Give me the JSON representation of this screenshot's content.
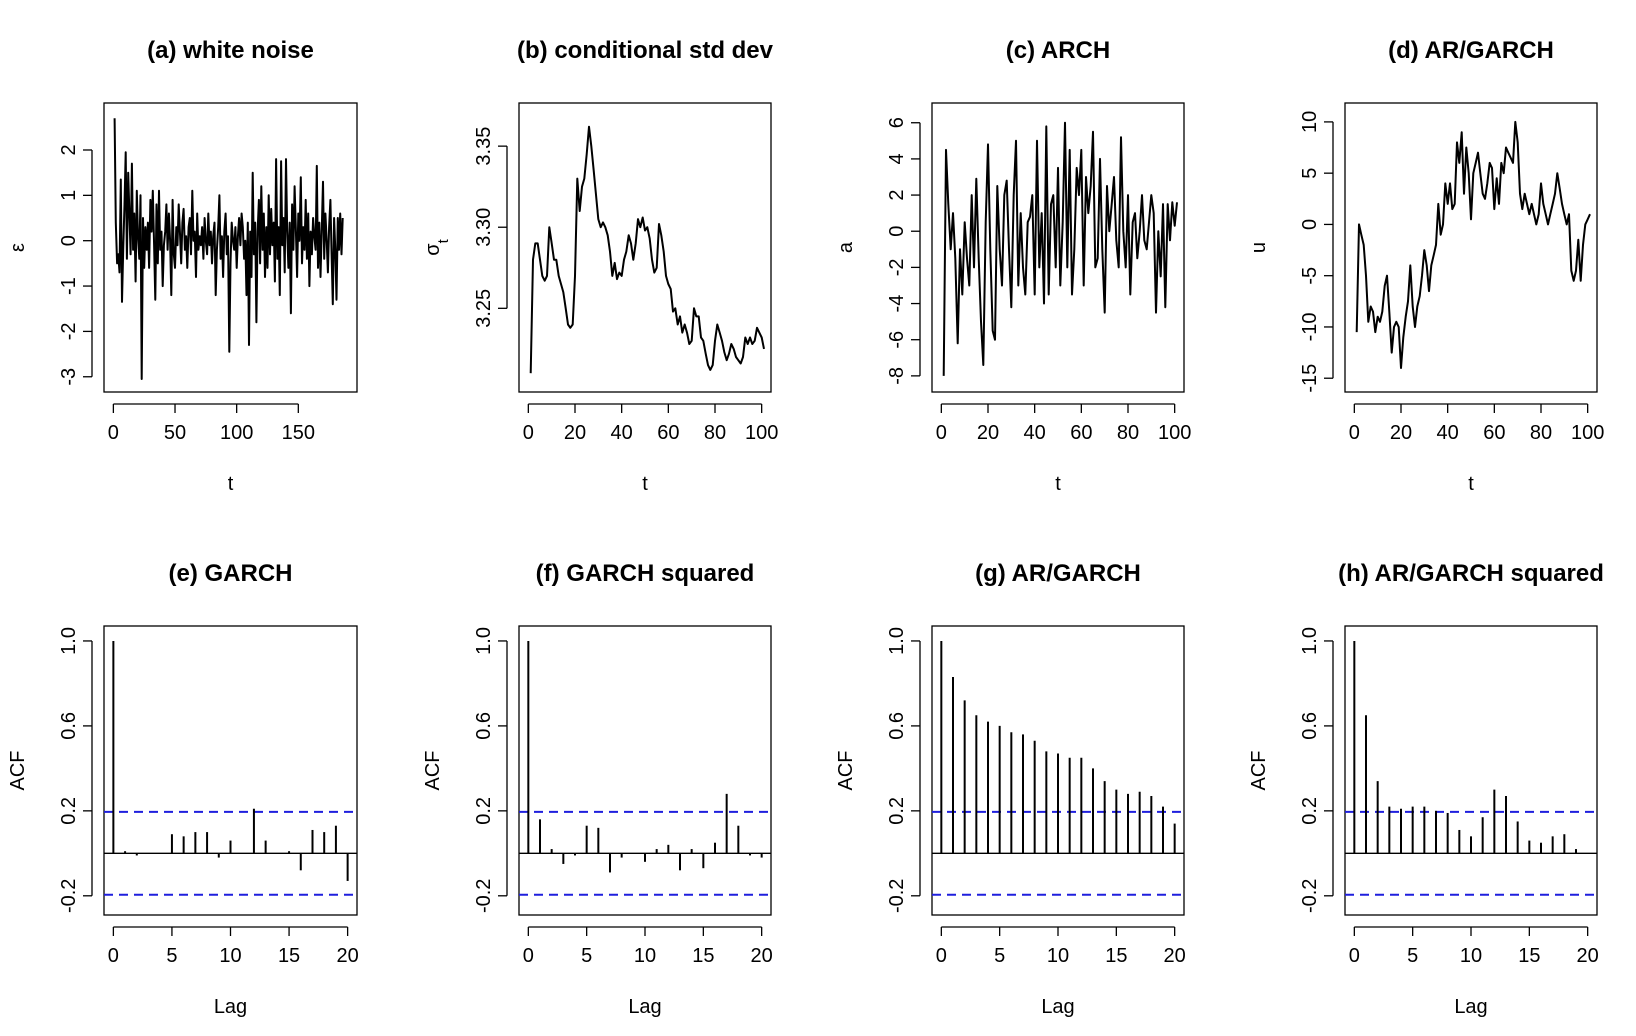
{
  "chart_data": [
    {
      "id": "a",
      "type": "line",
      "title": "(a) white noise",
      "xlabel": "t",
      "ylabel": "ε",
      "xlim": [
        0,
        190
      ],
      "ylim": [
        -3.1,
        2.8
      ],
      "xticks": [
        0,
        50,
        100,
        150
      ],
      "yticks": [
        -3,
        -2,
        -1,
        0,
        1,
        2
      ],
      "x_start": 1,
      "y": [
        2.7,
        0.4,
        -0.5,
        -0.3,
        -0.7,
        1.35,
        -1.35,
        -0.2,
        0.8,
        1.95,
        -0.4,
        1.5,
        0.6,
        -0.3,
        1.7,
        -0.2,
        0.6,
        -0.9,
        1.1,
        0.1,
        -0.4,
        1.0,
        -3.05,
        0.5,
        -0.6,
        0.3,
        -0.2,
        0.4,
        -0.6,
        0.9,
        0.2,
        1.1,
        -0.1,
        -1.3,
        0.8,
        -0.5,
        1.1,
        -0.2,
        0.2,
        -1.0,
        -0.1,
        0.2,
        0.8,
        -0.2,
        0.6,
        0.0,
        -1.2,
        0.9,
        -0.3,
        -0.6,
        0.3,
        -0.1,
        0.8,
        0.2,
        -0.5,
        0.4,
        0.7,
        -0.2,
        0.1,
        -0.6,
        0.3,
        0.5,
        -0.3,
        1.1,
        0.0,
        0.2,
        -0.8,
        0.6,
        -0.2,
        0.1,
        -0.1,
        0.3,
        -0.4,
        0.5,
        0.0,
        -0.3,
        0.6,
        -0.1,
        0.2,
        -0.5,
        0.1,
        0.4,
        -1.2,
        -0.2,
        0.3,
        1.0,
        -0.4,
        0.1,
        -0.8,
        0.2,
        0.6,
        -0.3,
        0.1,
        -2.45,
        -0.5,
        0.4,
        0.0,
        -0.2,
        0.3,
        -0.6,
        0.1,
        0.5,
        -0.1,
        0.6,
        0.3,
        -0.4,
        0.0,
        -1.2,
        0.4,
        -2.3,
        0.2,
        -0.8,
        1.5,
        -0.3,
        0.4,
        -1.8,
        0.2,
        0.9,
        -0.5,
        1.2,
        -0.2,
        0.6,
        -0.8,
        0.3,
        -0.6,
        1.0,
        -0.3,
        0.7,
        -0.1,
        0.4,
        -0.9,
        1.8,
        -0.4,
        0.3,
        -1.2,
        1.75,
        -0.1,
        0.5,
        -0.7,
        1.8,
        0.2,
        -0.6,
        0.4,
        -1.6,
        0.8,
        -0.2,
        1.2,
        0.3,
        -0.8,
        0.6,
        0.0,
        1.4,
        -0.5,
        0.3,
        -0.2,
        0.9,
        -0.4,
        0.6,
        -1.0,
        0.2,
        -0.3,
        0.5,
        0.1,
        -0.2,
        1.65,
        -0.6,
        0.4,
        -0.8,
        0.2,
        1.3,
        -0.4,
        0.6,
        0.0,
        -0.7,
        0.3,
        0.9,
        -0.3,
        -1.4,
        0.5,
        -0.2,
        -1.3,
        0.5,
        -0.2,
        0.6,
        -0.3,
        0.5
      ],
      "ylabel_style": "plain"
    },
    {
      "id": "b",
      "type": "line",
      "title": "(b) conditional std dev",
      "xlabel": "t",
      "ylabel": "σ",
      "ylabel_sub": "t",
      "xlim": [
        0,
        100
      ],
      "ylim": [
        3.205,
        3.37
      ],
      "xticks": [
        0,
        20,
        40,
        60,
        80,
        100
      ],
      "yticks": [
        3.25,
        3.3,
        3.35
      ],
      "x_start": 1,
      "y": [
        3.21,
        3.28,
        3.29,
        3.29,
        3.28,
        3.27,
        3.267,
        3.27,
        3.3,
        3.29,
        3.28,
        3.28,
        3.27,
        3.265,
        3.26,
        3.25,
        3.24,
        3.238,
        3.24,
        3.27,
        3.33,
        3.31,
        3.325,
        3.33,
        3.345,
        3.362,
        3.35,
        3.335,
        3.32,
        3.305,
        3.3,
        3.303,
        3.3,
        3.295,
        3.285,
        3.27,
        3.278,
        3.268,
        3.272,
        3.27,
        3.28,
        3.285,
        3.295,
        3.29,
        3.28,
        3.29,
        3.305,
        3.3,
        3.306,
        3.298,
        3.3,
        3.293,
        3.28,
        3.272,
        3.275,
        3.302,
        3.295,
        3.285,
        3.27,
        3.265,
        3.262,
        3.248,
        3.25,
        3.24,
        3.245,
        3.235,
        3.24,
        3.235,
        3.228,
        3.23,
        3.25,
        3.245,
        3.245,
        3.232,
        3.23,
        3.222,
        3.215,
        3.212,
        3.215,
        3.23,
        3.24,
        3.235,
        3.23,
        3.223,
        3.218,
        3.222,
        3.228,
        3.225,
        3.22,
        3.218,
        3.216,
        3.22,
        3.232,
        3.228,
        3.232,
        3.228,
        3.23,
        3.238,
        3.235,
        3.232,
        3.225
      ]
    },
    {
      "id": "c",
      "type": "line",
      "title": "(c) ARCH",
      "xlabel": "t",
      "ylabel": "a",
      "xlim": [
        0,
        100
      ],
      "ylim": [
        -8.3,
        6.5
      ],
      "xticks": [
        0,
        20,
        40,
        60,
        80,
        100
      ],
      "yticks": [
        -8,
        -6,
        -4,
        -2,
        0,
        2,
        4,
        6
      ],
      "x_start": 1,
      "y": [
        -8.0,
        4.5,
        1.5,
        -1.0,
        1.0,
        -1.5,
        -6.2,
        -1.0,
        -3.5,
        0.5,
        -1.5,
        -3.0,
        2.0,
        -2.0,
        2.9,
        -1.5,
        -5.0,
        -7.4,
        0.5,
        4.8,
        -1.0,
        -5.5,
        -6.0,
        2.5,
        -1.0,
        -3.0,
        2.0,
        2.8,
        -1.0,
        -4.2,
        2.0,
        5.0,
        -3.0,
        1.0,
        -2.0,
        -3.5,
        0.5,
        0.8,
        2.0,
        -3.5,
        5.0,
        -2.0,
        1.0,
        -4.0,
        5.8,
        -3.5,
        1.5,
        2.0,
        -2.0,
        3.5,
        -3.0,
        0.5,
        6.0,
        -2.0,
        4.5,
        -3.5,
        -1.0,
        3.5,
        2.0,
        4.5,
        -3.0,
        3.0,
        1.0,
        2.5,
        5.5,
        -2.0,
        -1.5,
        4.0,
        -1.0,
        -4.5,
        2.5,
        0.0,
        1.5,
        3.0,
        -0.5,
        -2.0,
        5.2,
        0.0,
        -2.0,
        2.0,
        -3.5,
        0.5,
        1.0,
        -1.5,
        0.0,
        2.0,
        -0.5,
        -1.0,
        0.5,
        2.0,
        1.0,
        -4.5,
        0.0,
        -2.5,
        1.5,
        -4.2,
        1.5,
        -0.5,
        1.6,
        0.3,
        1.6
      ]
    },
    {
      "id": "d",
      "type": "line",
      "title": "(d) AR/GARCH",
      "xlabel": "t",
      "ylabel": "u",
      "xlim": [
        0,
        100
      ],
      "ylim": [
        -15.3,
        10.8
      ],
      "xticks": [
        0,
        20,
        40,
        60,
        80,
        100
      ],
      "yticks": [
        -15,
        -10,
        -5,
        0,
        5,
        10
      ],
      "x_start": 1,
      "y": [
        -10.5,
        0.0,
        -1.0,
        -2.0,
        -5.0,
        -9.5,
        -8.0,
        -8.5,
        -10.5,
        -9.0,
        -9.5,
        -8.5,
        -6.0,
        -5.0,
        -8.5,
        -12.5,
        -10.0,
        -9.5,
        -10.0,
        -14.0,
        -11.0,
        -9.0,
        -7.5,
        -4.0,
        -8.0,
        -10.0,
        -8.0,
        -7.0,
        -5.0,
        -2.5,
        -4.0,
        -6.5,
        -4.0,
        -3.0,
        -2.0,
        2.0,
        -1.0,
        0.0,
        4.0,
        2.0,
        4.0,
        1.5,
        2.0,
        8.0,
        6.0,
        9.0,
        3.0,
        7.5,
        5.0,
        0.5,
        5.0,
        6.0,
        7.0,
        5.0,
        3.0,
        2.5,
        4.0,
        6.0,
        5.5,
        1.5,
        4.5,
        2.0,
        6.0,
        5.0,
        7.5,
        7.0,
        6.5,
        6.0,
        10.0,
        8.0,
        3.0,
        1.5,
        3.0,
        2.0,
        1.0,
        2.0,
        1.0,
        0.0,
        1.0,
        4.0,
        2.0,
        1.0,
        0.0,
        1.0,
        2.0,
        3.0,
        5.0,
        3.5,
        2.0,
        1.0,
        0.0,
        1.0,
        -4.5,
        -5.5,
        -4.5,
        -1.5,
        -5.5,
        -2.0,
        0.0,
        0.5,
        1.0
      ]
    },
    {
      "id": "e",
      "type": "bar",
      "title": "(e) GARCH",
      "xlabel": "Lag",
      "ylabel": "ACF",
      "xlim": [
        0,
        20
      ],
      "ylim": [
        -0.24,
        1.02
      ],
      "xticks": [
        0,
        5,
        10,
        15,
        20
      ],
      "yticks": [
        -0.2,
        0.2,
        0.6,
        1.0
      ],
      "ci": 0.195,
      "lags": [
        0,
        1,
        2,
        3,
        4,
        5,
        6,
        7,
        8,
        9,
        10,
        11,
        12,
        13,
        14,
        15,
        16,
        17,
        18,
        19,
        20
      ],
      "values": [
        1.0,
        0.01,
        -0.01,
        0.0,
        0.0,
        0.09,
        0.08,
        0.1,
        0.1,
        -0.02,
        0.06,
        0.0,
        0.21,
        0.06,
        0.0,
        0.01,
        -0.08,
        0.11,
        0.1,
        0.13,
        -0.13
      ]
    },
    {
      "id": "f",
      "type": "bar",
      "title": "(f) GARCH squared",
      "xlabel": "Lag",
      "ylabel": "ACF",
      "xlim": [
        0,
        20
      ],
      "ylim": [
        -0.24,
        1.02
      ],
      "xticks": [
        0,
        5,
        10,
        15,
        20
      ],
      "yticks": [
        -0.2,
        0.2,
        0.6,
        1.0
      ],
      "ci": 0.195,
      "lags": [
        0,
        1,
        2,
        3,
        4,
        5,
        6,
        7,
        8,
        9,
        10,
        11,
        12,
        13,
        14,
        15,
        16,
        17,
        18,
        19,
        20
      ],
      "values": [
        1.0,
        0.16,
        0.02,
        -0.05,
        -0.01,
        0.13,
        0.12,
        -0.09,
        -0.02,
        0.0,
        -0.04,
        0.02,
        0.04,
        -0.08,
        0.02,
        -0.07,
        0.05,
        0.28,
        0.13,
        -0.01,
        -0.02
      ]
    },
    {
      "id": "g",
      "type": "bar",
      "title": "(g) AR/GARCH",
      "xlabel": "Lag",
      "ylabel": "ACF",
      "xlim": [
        0,
        20
      ],
      "ylim": [
        -0.24,
        1.02
      ],
      "xticks": [
        0,
        5,
        10,
        15,
        20
      ],
      "yticks": [
        -0.2,
        0.2,
        0.6,
        1.0
      ],
      "ci": 0.195,
      "lags": [
        0,
        1,
        2,
        3,
        4,
        5,
        6,
        7,
        8,
        9,
        10,
        11,
        12,
        13,
        14,
        15,
        16,
        17,
        18,
        19,
        20
      ],
      "values": [
        1.0,
        0.83,
        0.72,
        0.65,
        0.62,
        0.6,
        0.57,
        0.56,
        0.53,
        0.48,
        0.47,
        0.45,
        0.45,
        0.4,
        0.34,
        0.3,
        0.28,
        0.29,
        0.27,
        0.22,
        0.14
      ]
    },
    {
      "id": "h",
      "type": "bar",
      "title": "(h) AR/GARCH squared",
      "xlabel": "Lag",
      "ylabel": "ACF",
      "xlim": [
        0,
        20
      ],
      "ylim": [
        -0.24,
        1.02
      ],
      "xticks": [
        0,
        5,
        10,
        15,
        20
      ],
      "yticks": [
        -0.2,
        0.2,
        0.6,
        1.0
      ],
      "ci": 0.195,
      "lags": [
        0,
        1,
        2,
        3,
        4,
        5,
        6,
        7,
        8,
        9,
        10,
        11,
        12,
        13,
        14,
        15,
        16,
        17,
        18,
        19,
        20
      ],
      "values": [
        1.0,
        0.65,
        0.34,
        0.22,
        0.21,
        0.22,
        0.22,
        0.2,
        0.19,
        0.11,
        0.08,
        0.17,
        0.3,
        0.27,
        0.15,
        0.06,
        0.05,
        0.08,
        0.09,
        0.02,
        0.0
      ]
    }
  ]
}
